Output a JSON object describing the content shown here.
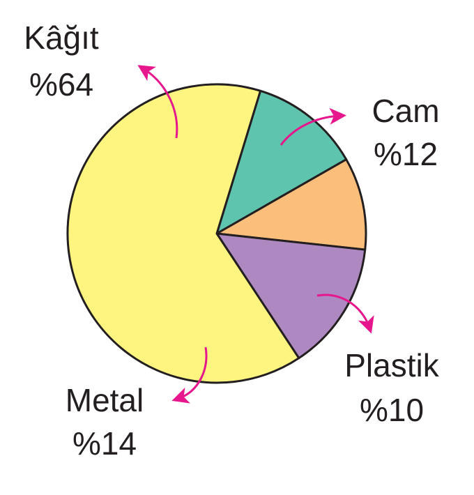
{
  "chart_data": {
    "type": "pie",
    "title": "",
    "slices": [
      {
        "label": "Cam",
        "value_label": "%12",
        "value": 12,
        "color": "#5FC4AE"
      },
      {
        "label": "Plastik",
        "value_label": "%10",
        "value": 10,
        "color": "#FBBE7B"
      },
      {
        "label": "Metal",
        "value_label": "%14",
        "value": 14,
        "color": "#AE88C0"
      },
      {
        "label": "Kâğıt",
        "value_label": "%64",
        "value": 64,
        "color": "#FDF57F"
      }
    ],
    "arrow_color": "#E6168C"
  }
}
